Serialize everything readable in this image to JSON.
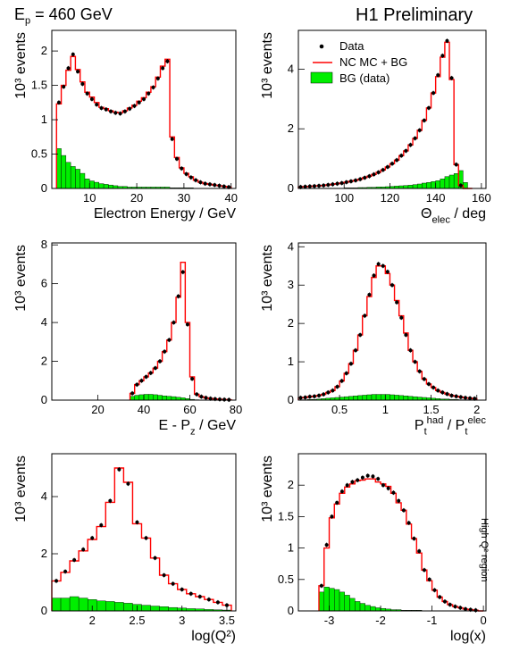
{
  "header": {
    "beam": "E",
    "beam_sub": "p",
    "beam_rest": " = 460 GeV",
    "preliminary": "H1 Preliminary",
    "region": "High Q² region"
  },
  "colors": {
    "mc": "#ff0000",
    "bg": "#00ee00",
    "data": "#000000"
  },
  "chart_data": [
    {
      "type": "bar",
      "id": "eE",
      "xlabel": "Electron Energy / GeV",
      "ylabel": "10³ events",
      "xlim": [
        2,
        41
      ],
      "ylim": [
        0,
        2.3
      ],
      "xticks": [
        10,
        20,
        30,
        40
      ],
      "xtick_labels": [
        "10",
        "20",
        "30",
        "40"
      ],
      "yticks": [
        0,
        0.5,
        1,
        1.5,
        2
      ],
      "ytick_labels": [
        "0",
        "0.5",
        "1",
        "1.5",
        "2"
      ],
      "edges": [
        3,
        4,
        5,
        6,
        7,
        8,
        9,
        10,
        11,
        12,
        13,
        14,
        15,
        16,
        17,
        18,
        19,
        20,
        21,
        22,
        23,
        24,
        25,
        26,
        27,
        28,
        29,
        30,
        31,
        32,
        33,
        34,
        35,
        36,
        37,
        38,
        39,
        40
      ],
      "mc": [
        1.23,
        1.5,
        1.72,
        1.92,
        1.73,
        1.55,
        1.4,
        1.33,
        1.25,
        1.18,
        1.16,
        1.13,
        1.11,
        1.1,
        1.13,
        1.17,
        1.21,
        1.27,
        1.32,
        1.4,
        1.48,
        1.62,
        1.78,
        1.88,
        0.75,
        0.45,
        0.3,
        0.22,
        0.17,
        0.12,
        0.09,
        0.07,
        0.06,
        0.05,
        0.04,
        0.03,
        0.02
      ],
      "data": [
        1.25,
        1.48,
        1.75,
        1.95,
        1.7,
        1.52,
        1.38,
        1.3,
        1.22,
        1.17,
        1.15,
        1.12,
        1.1,
        1.09,
        1.12,
        1.16,
        1.2,
        1.25,
        1.3,
        1.38,
        1.47,
        1.6,
        1.75,
        1.85,
        0.72,
        0.43,
        0.29,
        0.21,
        0.16,
        0.12,
        0.09,
        0.07,
        0.06,
        0.05,
        0.04,
        0.03,
        0.02
      ],
      "bg": [
        0.58,
        0.48,
        0.38,
        0.32,
        0.28,
        0.22,
        0.14,
        0.11,
        0.09,
        0.07,
        0.06,
        0.05,
        0.04,
        0.03,
        0.03,
        0.02,
        0.02,
        0.02,
        0.02,
        0.02,
        0.02,
        0.02,
        0.02,
        0.02,
        0.01,
        0.01,
        0.01,
        0.01,
        0.01,
        0.0,
        0.0,
        0.0,
        0.0,
        0.0,
        0.0,
        0.0,
        0.0
      ]
    },
    {
      "type": "bar",
      "id": "theta",
      "xlabel": "Θ_elec / deg",
      "ylabel": "10³ events",
      "xlim": [
        80,
        162
      ],
      "ylim": [
        0,
        5.3
      ],
      "xticks": [
        100,
        120,
        140,
        160
      ],
      "xtick_labels": [
        "100",
        "120",
        "140",
        "160"
      ],
      "yticks": [
        0,
        2,
        4
      ],
      "ytick_labels": [
        "0",
        "2",
        "4"
      ],
      "edges": [
        80,
        82,
        84,
        86,
        88,
        90,
        92,
        94,
        96,
        98,
        100,
        102,
        104,
        106,
        108,
        110,
        112,
        114,
        116,
        118,
        120,
        122,
        124,
        126,
        128,
        130,
        132,
        134,
        136,
        138,
        140,
        142,
        144,
        146,
        148,
        150,
        152,
        154,
        156
      ],
      "mc": [
        0.05,
        0.06,
        0.07,
        0.08,
        0.09,
        0.1,
        0.12,
        0.14,
        0.16,
        0.18,
        0.21,
        0.24,
        0.27,
        0.31,
        0.36,
        0.41,
        0.47,
        0.54,
        0.62,
        0.72,
        0.83,
        0.95,
        1.1,
        1.26,
        1.46,
        1.68,
        1.95,
        2.28,
        2.7,
        3.2,
        3.75,
        4.4,
        4.9,
        3.65,
        0.8,
        0.1,
        0.0,
        0.0
      ],
      "data": [
        0.05,
        0.06,
        0.07,
        0.08,
        0.09,
        0.1,
        0.12,
        0.14,
        0.16,
        0.18,
        0.21,
        0.24,
        0.27,
        0.31,
        0.36,
        0.41,
        0.47,
        0.54,
        0.62,
        0.72,
        0.83,
        0.95,
        1.1,
        1.26,
        1.46,
        1.68,
        1.95,
        2.28,
        2.7,
        3.2,
        3.8,
        4.45,
        4.95,
        3.7,
        0.8,
        0.1,
        0.0,
        0.0
      ],
      "bg": [
        0.0,
        0.0,
        0.0,
        0.0,
        0.0,
        0.0,
        0.01,
        0.01,
        0.01,
        0.01,
        0.02,
        0.02,
        0.02,
        0.03,
        0.03,
        0.04,
        0.04,
        0.05,
        0.05,
        0.06,
        0.07,
        0.08,
        0.09,
        0.1,
        0.11,
        0.13,
        0.15,
        0.18,
        0.2,
        0.23,
        0.26,
        0.32,
        0.4,
        0.45,
        0.5,
        0.6,
        0.2,
        0.0
      ],
      "legend": {
        "placement": "top-right",
        "entries": [
          {
            "label": "Data",
            "kind": "marker"
          },
          {
            "label": "NC MC + BG",
            "kind": "line"
          },
          {
            "label": "BG (data)",
            "kind": "fill"
          }
        ]
      }
    },
    {
      "type": "bar",
      "id": "epz",
      "xlabel": "E - P_z / GeV",
      "ylabel": "10³ events",
      "xlim": [
        0,
        80
      ],
      "ylim": [
        0,
        8.1
      ],
      "xticks": [
        20,
        40,
        60,
        80
      ],
      "xtick_labels": [
        "20",
        "40",
        "60",
        "80"
      ],
      "yticks": [
        0,
        2,
        4,
        6,
        8
      ],
      "ytick_labels": [
        "0",
        "2",
        "4",
        "6",
        "8"
      ],
      "edges": [
        34,
        36,
        38,
        40,
        42,
        44,
        46,
        48,
        50,
        52,
        54,
        56,
        58,
        60,
        62,
        64,
        66,
        68,
        70,
        72,
        74,
        76,
        78
      ],
      "mc": [
        0.35,
        0.8,
        1.0,
        1.2,
        1.4,
        1.65,
        2.0,
        2.5,
        3.1,
        4.0,
        5.3,
        7.1,
        4.0,
        1.2,
        0.3,
        0.18,
        0.12,
        0.08,
        0.06,
        0.04,
        0.03,
        0.02
      ],
      "data": [
        0.35,
        0.8,
        1.0,
        1.2,
        1.4,
        1.65,
        2.0,
        2.5,
        3.1,
        4.0,
        5.35,
        6.6,
        3.9,
        1.1,
        0.3,
        0.18,
        0.12,
        0.08,
        0.06,
        0.04,
        0.03,
        0.02
      ],
      "bg": [
        0.2,
        0.25,
        0.28,
        0.3,
        0.3,
        0.28,
        0.25,
        0.22,
        0.2,
        0.18,
        0.15,
        0.12,
        0.08,
        0.04,
        0.02,
        0.0,
        0.0,
        0.0,
        0.0,
        0.0,
        0.0,
        0.0
      ]
    },
    {
      "type": "bar",
      "id": "ptratio",
      "xlabel": "P_t^had / P_t^elec",
      "ylabel": "10³ events",
      "xlim": [
        0.05,
        2.1
      ],
      "ylim": [
        0,
        4.1
      ],
      "xticks": [
        0.5,
        1,
        1.5,
        2
      ],
      "xtick_labels": [
        "0.5",
        "1",
        "1.5",
        "2"
      ],
      "yticks": [
        0,
        1,
        2,
        3,
        4
      ],
      "ytick_labels": [
        "0",
        "1",
        "2",
        "3",
        "4"
      ],
      "edges": [
        0.05,
        0.1,
        0.15,
        0.2,
        0.25,
        0.3,
        0.35,
        0.4,
        0.45,
        0.5,
        0.55,
        0.6,
        0.65,
        0.7,
        0.75,
        0.8,
        0.85,
        0.9,
        0.95,
        1.0,
        1.05,
        1.1,
        1.15,
        1.2,
        1.25,
        1.3,
        1.35,
        1.4,
        1.45,
        1.5,
        1.55,
        1.6,
        1.65,
        1.7,
        1.75,
        1.8,
        1.85,
        1.9,
        1.95,
        2.0
      ],
      "mc": [
        0.06,
        0.07,
        0.09,
        0.1,
        0.12,
        0.15,
        0.2,
        0.25,
        0.35,
        0.5,
        0.7,
        0.95,
        1.3,
        1.7,
        2.2,
        2.7,
        3.2,
        3.5,
        3.5,
        3.3,
        3.0,
        2.6,
        2.2,
        1.75,
        1.3,
        1.0,
        0.75,
        0.55,
        0.42,
        0.33,
        0.25,
        0.2,
        0.16,
        0.12,
        0.1,
        0.08,
        0.06,
        0.05,
        0.04
      ],
      "data": [
        0.06,
        0.07,
        0.09,
        0.1,
        0.12,
        0.15,
        0.2,
        0.25,
        0.35,
        0.5,
        0.7,
        0.95,
        1.3,
        1.7,
        2.2,
        2.75,
        3.25,
        3.55,
        3.5,
        3.35,
        3.0,
        2.55,
        2.15,
        1.7,
        1.3,
        1.0,
        0.75,
        0.55,
        0.42,
        0.33,
        0.25,
        0.2,
        0.16,
        0.12,
        0.1,
        0.08,
        0.06,
        0.05,
        0.04
      ],
      "bg": [
        0.01,
        0.01,
        0.02,
        0.02,
        0.03,
        0.04,
        0.05,
        0.06,
        0.07,
        0.08,
        0.09,
        0.1,
        0.11,
        0.12,
        0.13,
        0.14,
        0.15,
        0.15,
        0.15,
        0.15,
        0.14,
        0.13,
        0.12,
        0.11,
        0.1,
        0.09,
        0.08,
        0.07,
        0.06,
        0.05,
        0.04,
        0.03,
        0.03,
        0.02,
        0.02,
        0.01,
        0.01,
        0.01,
        0.01
      ]
    },
    {
      "type": "bar",
      "id": "logq2",
      "xlabel": "log(Q²)",
      "ylabel": "10³ events",
      "xlim": [
        1.55,
        3.6
      ],
      "ylim": [
        0,
        5.5
      ],
      "xticks": [
        2,
        2.5,
        3,
        3.5
      ],
      "xtick_labels": [
        "2",
        "2.5",
        "3",
        "3.5"
      ],
      "yticks": [
        0,
        2,
        4
      ],
      "ytick_labels": [
        "0",
        "2",
        "4"
      ],
      "edges": [
        1.55,
        1.65,
        1.75,
        1.85,
        1.95,
        2.05,
        2.15,
        2.25,
        2.35,
        2.45,
        2.55,
        2.65,
        2.75,
        2.85,
        2.95,
        3.05,
        3.15,
        3.25,
        3.35,
        3.45,
        3.55
      ],
      "mc": [
        1.05,
        1.35,
        1.75,
        2.1,
        2.5,
        2.95,
        3.8,
        5.0,
        4.5,
        3.05,
        2.55,
        1.85,
        1.25,
        0.95,
        0.75,
        0.6,
        0.5,
        0.4,
        0.3,
        0.2
      ],
      "data": [
        1.05,
        1.38,
        1.78,
        2.15,
        2.55,
        3.0,
        3.85,
        4.95,
        4.45,
        3.1,
        2.55,
        1.85,
        1.25,
        0.95,
        0.75,
        0.6,
        0.5,
        0.4,
        0.3,
        0.2
      ],
      "bg": [
        0.45,
        0.45,
        0.5,
        0.45,
        0.4,
        0.35,
        0.33,
        0.3,
        0.27,
        0.23,
        0.2,
        0.17,
        0.15,
        0.12,
        0.1,
        0.08,
        0.07,
        0.05,
        0.04,
        0.03
      ]
    },
    {
      "type": "bar",
      "id": "logx",
      "xlabel": "log(x)",
      "ylabel": "10³ events",
      "xlim": [
        -3.6,
        0.05
      ],
      "ylim": [
        0,
        2.5
      ],
      "xticks": [
        -3,
        -2,
        -1,
        0
      ],
      "xtick_labels": [
        "-3",
        "-2",
        "-1",
        "0"
      ],
      "yticks": [
        0,
        0.5,
        1,
        1.5,
        2
      ],
      "ytick_labels": [
        "0",
        "0.5",
        "1",
        "1.5",
        "2"
      ],
      "edges": [
        -3.2,
        -3.1,
        -3.0,
        -2.9,
        -2.8,
        -2.7,
        -2.6,
        -2.5,
        -2.4,
        -2.3,
        -2.2,
        -2.1,
        -2.0,
        -1.9,
        -1.8,
        -1.7,
        -1.6,
        -1.5,
        -1.4,
        -1.3,
        -1.2,
        -1.1,
        -1.0,
        -0.9,
        -0.8,
        -0.7,
        -0.6,
        -0.5,
        -0.4,
        -0.3,
        -0.2,
        -0.1,
        0.0
      ],
      "mc": [
        0.4,
        1.0,
        1.48,
        1.7,
        1.87,
        1.97,
        2.02,
        2.07,
        2.08,
        2.1,
        2.1,
        2.05,
        2.02,
        1.98,
        1.87,
        1.72,
        1.6,
        1.38,
        1.15,
        0.92,
        0.65,
        0.48,
        0.33,
        0.22,
        0.15,
        0.1,
        0.07,
        0.05,
        0.03,
        0.02,
        0.01,
        0.0
      ],
      "data": [
        0.4,
        1.05,
        1.5,
        1.72,
        1.9,
        2.0,
        2.05,
        2.08,
        2.12,
        2.15,
        2.14,
        2.1,
        2.0,
        1.95,
        1.88,
        1.75,
        1.6,
        1.4,
        1.15,
        0.95,
        0.65,
        0.5,
        0.33,
        0.22,
        0.15,
        0.1,
        0.07,
        0.05,
        0.03,
        0.02,
        0.01,
        0.0
      ],
      "bg": [
        0.3,
        0.38,
        0.36,
        0.34,
        0.3,
        0.25,
        0.2,
        0.15,
        0.12,
        0.09,
        0.07,
        0.05,
        0.04,
        0.03,
        0.02,
        0.02,
        0.01,
        0.01,
        0.01,
        0.01,
        0.0,
        0.0,
        0.0,
        0.0,
        0.0,
        0.0,
        0.0,
        0.0,
        0.0,
        0.0,
        0.0,
        0.0
      ]
    }
  ]
}
